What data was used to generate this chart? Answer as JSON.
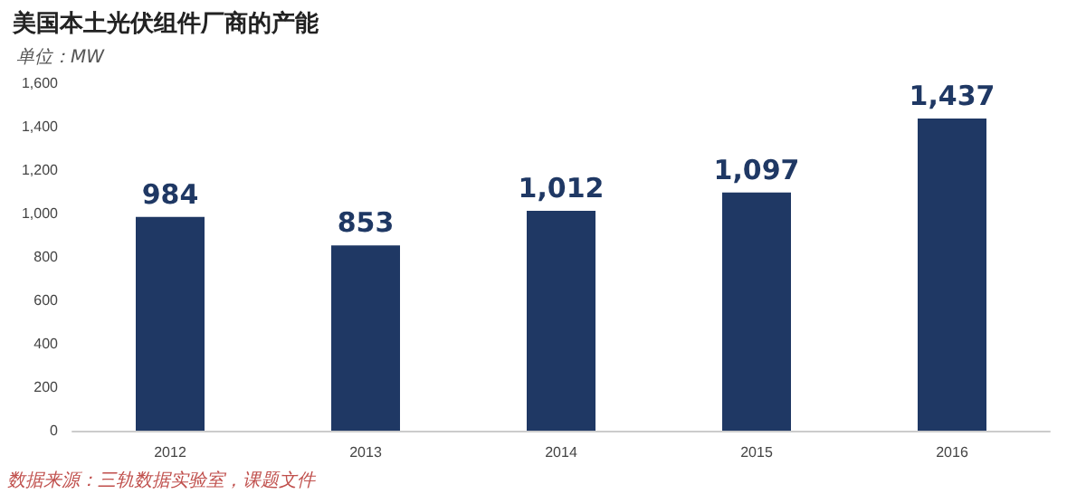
{
  "chart_data": {
    "type": "bar",
    "title": "美国本土光伏组件厂商的产能",
    "subtitle": "单位：MW",
    "categories": [
      "2012",
      "2013",
      "2014",
      "2015",
      "2016"
    ],
    "values": [
      984,
      853,
      1012,
      1097,
      1437
    ],
    "value_labels": [
      "984",
      "853",
      "1,012",
      "1,097",
      "1,437"
    ],
    "color": "#1f3864",
    "ylim": [
      0,
      1600
    ],
    "yticks": [
      0,
      200,
      400,
      600,
      800,
      {
        "value": 1000,
        "label": "1,000"
      },
      {
        "value": 1200,
        "label": "1,200"
      },
      {
        "value": 1400,
        "label": "1,400"
      },
      {
        "value": 1600,
        "label": "1,600"
      }
    ],
    "grid": false,
    "annotations": [
      "数据来源：三轨数据实验室，课题文件"
    ]
  }
}
